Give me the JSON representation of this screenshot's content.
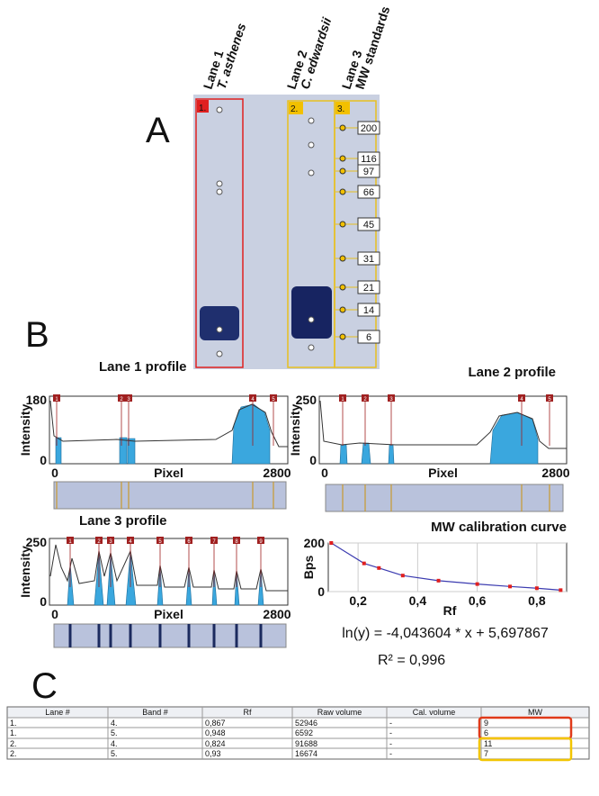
{
  "panel_a": {
    "letter": "A",
    "lanes": [
      {
        "label": "Lane 1",
        "species": "T. asthenes",
        "tag": "1."
      },
      {
        "label": "Lane 2",
        "species": "C. edwardsii",
        "tag": "2."
      },
      {
        "label": "Lane 3",
        "species": "MW standards",
        "tag": "3."
      }
    ],
    "mw_labels": [
      "200",
      "116",
      "97",
      "66",
      "45",
      "31",
      "21",
      "14",
      "6"
    ]
  },
  "panel_b": {
    "letter": "B",
    "profiles": [
      {
        "title": "Lane 1 profile",
        "y_label": "Intensity",
        "x_label": "Pixel",
        "y_ticks": [
          0,
          180
        ],
        "x_ticks": [
          0,
          2800
        ],
        "band_labels": [
          "1",
          "2",
          "3",
          "4",
          "5"
        ]
      },
      {
        "title": "Lane 2 profile",
        "y_label": "Intensity",
        "x_label": "Pixel",
        "y_ticks": [
          0,
          250
        ],
        "x_ticks": [
          0,
          2800
        ],
        "band_labels": [
          "1",
          "2",
          "3",
          "4",
          "5"
        ]
      },
      {
        "title": "Lane 3 profile",
        "y_label": "Intensity",
        "x_label": "Pixel",
        "y_ticks": [
          0,
          250
        ],
        "x_ticks": [
          0,
          2800
        ],
        "band_labels": [
          "1",
          "2",
          "3",
          "4",
          "5",
          "6",
          "7",
          "8",
          "9"
        ]
      }
    ],
    "calibration": {
      "title": "MW calibration curve",
      "y_label": "Bps",
      "x_label": "Rf",
      "x": [
        0.11,
        0.22,
        0.27,
        0.35,
        0.47,
        0.6,
        0.71,
        0.8,
        0.88
      ],
      "values": [
        200,
        116,
        97,
        66,
        45,
        31,
        21,
        14,
        6
      ],
      "xlim": [
        0.1,
        0.9
      ],
      "ylim": [
        0,
        200
      ],
      "xticks": [
        {
          "value": 0.2,
          "label": "0,2"
        },
        {
          "value": 0.4,
          "label": "0,4"
        },
        {
          "value": 0.6,
          "label": "0,6"
        },
        {
          "value": 0.8,
          "label": "0,8"
        }
      ],
      "yticks": [
        0,
        200
      ],
      "equation": "ln(y) = -4,043604 * x + 5,697867",
      "r2": "R² = 0,996"
    }
  },
  "panel_c": {
    "letter": "C",
    "table": {
      "header": [
        "Lane #",
        "Band #",
        "Rf",
        "Raw volume",
        "Cal. volume",
        "MW"
      ],
      "rows": [
        [
          "1.",
          "4.",
          "0,867",
          "52946",
          "-",
          "9"
        ],
        [
          "1.",
          "5.",
          "0,948",
          "6592",
          "-",
          "6"
        ],
        [
          "2.",
          "4.",
          "0,824",
          "91688",
          "-",
          "11"
        ],
        [
          "2.",
          "5.",
          "0,93",
          "16674",
          "-",
          "7"
        ]
      ]
    }
  }
}
